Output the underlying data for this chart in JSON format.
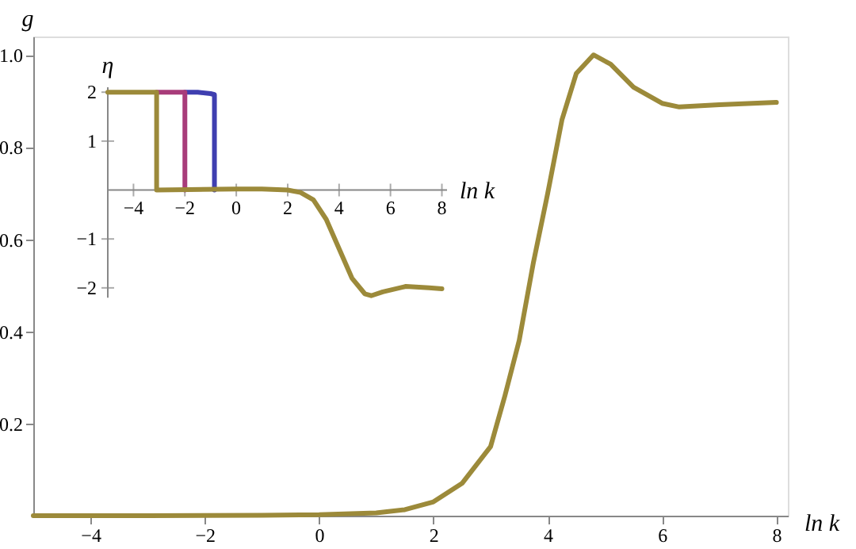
{
  "chart_data": [
    {
      "type": "line",
      "xlabel": "ln k",
      "ylabel": "g",
      "xlim": [
        -5,
        8.2
      ],
      "ylim": [
        0,
        1.04
      ],
      "xticks": [
        -4,
        -2,
        0,
        2,
        4,
        6,
        8
      ],
      "yticks": [
        0.2,
        0.4,
        0.6,
        0.8,
        {
          "value": 1.0,
          "label": "1.0"
        }
      ],
      "grid": false,
      "line_style": "solid",
      "marker": "none",
      "series": [
        {
          "color": "#9c8a3a",
          "x": [
            -5,
            -3,
            -1,
            0,
            1,
            1.5,
            2,
            2.5,
            3,
            3.25,
            3.5,
            3.75,
            4,
            4.25,
            4.5,
            4.8,
            5.1,
            5.5,
            6,
            6.3,
            7,
            8
          ],
          "values": [
            0,
            0,
            0.001,
            0.002,
            0.006,
            0.013,
            0.03,
            0.07,
            0.15,
            0.26,
            0.38,
            0.55,
            0.7,
            0.86,
            0.96,
            1.0,
            0.98,
            0.93,
            0.895,
            0.887,
            0.892,
            0.897
          ]
        }
      ]
    },
    {
      "type": "line",
      "xlabel": "ln k",
      "ylabel": "η",
      "xlim": [
        -5,
        8.2
      ],
      "ylim": [
        -2.2,
        2.1
      ],
      "xticks": [
        -4,
        -2,
        0,
        2,
        4,
        6,
        8
      ],
      "yticks": [
        -2,
        -1,
        1,
        2
      ],
      "grid": false,
      "line_style": "solid",
      "marker": "none",
      "series": [
        {
          "color": "#3f3fb0",
          "x": [
            -2,
            -1.5,
            -1.0,
            -0.85,
            -0.85
          ],
          "values": [
            2,
            2,
            1.97,
            1.95,
            0
          ]
        },
        {
          "color": "#a83c7a",
          "x": [
            -3.1,
            -2,
            -2
          ],
          "values": [
            2,
            2,
            0
          ]
        },
        {
          "color": "#9c8a3a",
          "x": [
            -5,
            -3.1,
            -3.1,
            0,
            1,
            2,
            2.5,
            3,
            3.5,
            4,
            4.5,
            5,
            5.25,
            5.7,
            6.6,
            7.5,
            8
          ],
          "values": [
            2,
            2,
            0,
            0.02,
            0.02,
            0,
            -0.05,
            -0.2,
            -0.6,
            -1.2,
            -1.8,
            -2.12,
            -2.16,
            -2.08,
            -1.97,
            -2.0,
            -2.02
          ]
        }
      ]
    }
  ]
}
